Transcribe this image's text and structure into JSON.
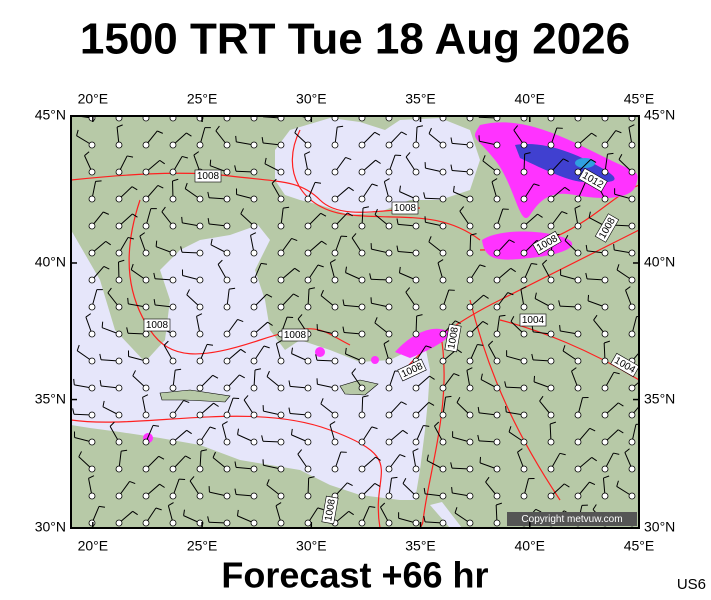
{
  "header": {
    "title": "1500 TRT Tue 18 Aug 2026"
  },
  "map": {
    "lonlim": [
      19,
      45
    ],
    "latlim": [
      30,
      45
    ],
    "lon_ticks": [
      {
        "value": 20,
        "label": "20°E"
      },
      {
        "value": 25,
        "label": "25°E"
      },
      {
        "value": 30,
        "label": "30°E"
      },
      {
        "value": 35,
        "label": "35°E"
      },
      {
        "value": 40,
        "label": "40°E"
      },
      {
        "value": 45,
        "label": "45°E"
      }
    ],
    "lat_ticks": [
      {
        "value": 30,
        "label": "30°N"
      },
      {
        "value": 35,
        "label": "35°N"
      },
      {
        "value": 40,
        "label": "40°N"
      },
      {
        "value": 45,
        "label": "45°N"
      }
    ],
    "isobar_labels": [
      1008,
      1008,
      1008,
      1008,
      1008,
      1008,
      1008,
      1008,
      1012,
      1004,
      1004,
      1008
    ],
    "copyright": "Copyright metvuw.com"
  },
  "footer": {
    "forecast": "Forecast +66 hr",
    "model": "US6"
  }
}
